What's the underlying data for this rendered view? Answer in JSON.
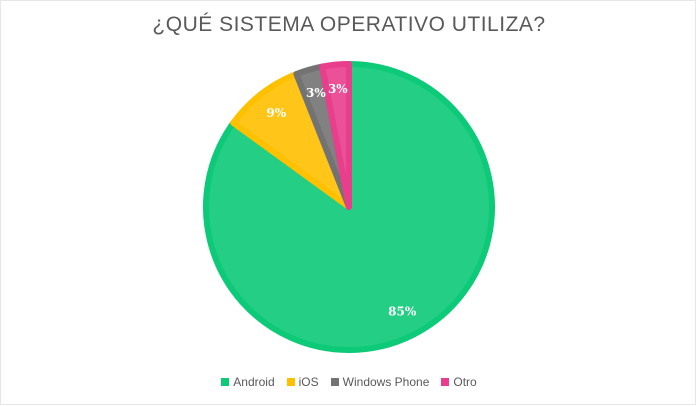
{
  "chart_data": {
    "type": "pie",
    "title": "¿QUÉ SISTEMA OPERATIVO UTILIZA?",
    "categories": [
      "Android",
      "iOS",
      "Windows Phone",
      "Otro"
    ],
    "values": [
      85,
      9,
      3,
      3
    ],
    "labels": [
      "85%",
      "9%",
      "3%",
      "3%"
    ],
    "colors": [
      "#0cca78",
      "#ffc000",
      "#737373",
      "#e83e8c"
    ],
    "legend_position": "bottom"
  }
}
